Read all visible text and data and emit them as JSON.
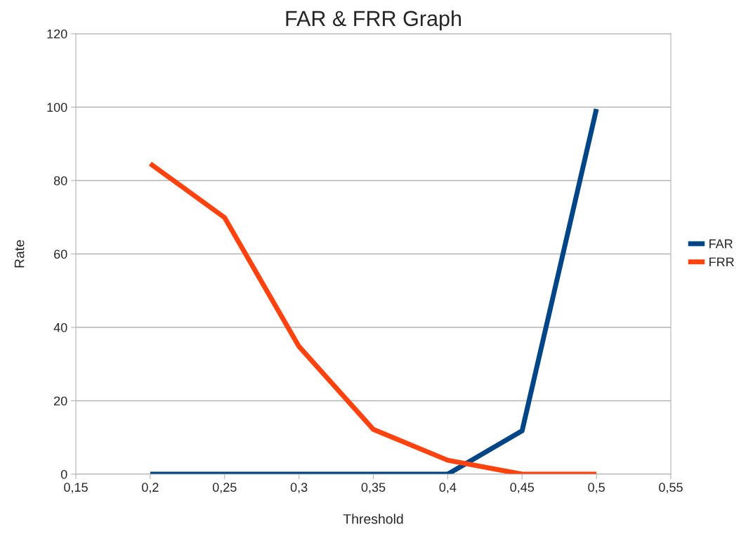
{
  "chart_data": {
    "type": "line",
    "title": "FAR & FRR Graph",
    "xlabel": "Threshold",
    "ylabel": "Rate",
    "x": [
      0.2,
      0.25,
      0.3,
      0.35,
      0.4,
      0.45,
      0.5
    ],
    "series": [
      {
        "name": "FAR",
        "color": "#004586",
        "values": [
          0,
          0,
          0,
          0,
          0,
          11.8,
          99.5
        ]
      },
      {
        "name": "FRR",
        "color": "#ff420e",
        "values": [
          84.6,
          69.9,
          34.8,
          12.2,
          3.8,
          0,
          0
        ]
      }
    ],
    "xlim": [
      0.15,
      0.55
    ],
    "xticks": [
      {
        "value": 0.15,
        "label": "0,15"
      },
      {
        "value": 0.2,
        "label": "0,2"
      },
      {
        "value": 0.25,
        "label": "0,25"
      },
      {
        "value": 0.3,
        "label": "0,3"
      },
      {
        "value": 0.35,
        "label": "0,35"
      },
      {
        "value": 0.4,
        "label": "0,4"
      },
      {
        "value": 0.45,
        "label": "0,45"
      },
      {
        "value": 0.5,
        "label": "0,5"
      },
      {
        "value": 0.55,
        "label": "0,55"
      }
    ],
    "ylim": [
      0,
      120
    ],
    "yticks": [
      0,
      20,
      40,
      60,
      80,
      100,
      120
    ],
    "grid": "y",
    "legend": "right",
    "marker": "none",
    "line_style": "solid"
  }
}
